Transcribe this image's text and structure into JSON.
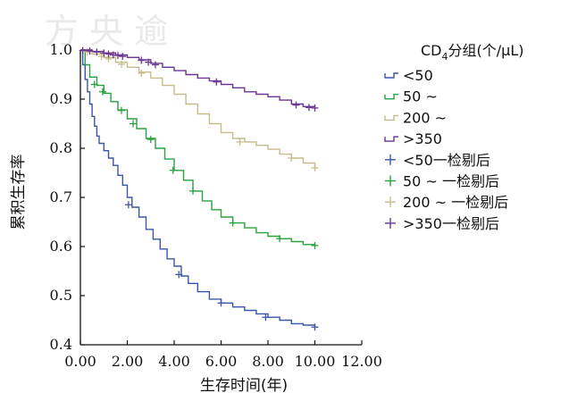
{
  "watermark": "方 央 逾",
  "chart_data": {
    "type": "line",
    "subtype": "kaplan-meier",
    "xlabel": "生存时间(年)",
    "ylabel": "累积生存率",
    "xlim": [
      0,
      12
    ],
    "ylim": [
      0.4,
      1.0
    ],
    "x_ticks": [
      "0.00",
      "2.00",
      "4.00",
      "6.00",
      "8.00",
      "10.00",
      "12.00"
    ],
    "y_ticks": [
      "0.4",
      "0.5",
      "0.6",
      "0.7",
      "0.8",
      "0.9",
      "1.0"
    ],
    "grid": false,
    "legend": {
      "placement": "right",
      "title_prefix": "CD",
      "title_sub": "4",
      "title_suffix": "分组(个/μL)",
      "entries": [
        "<50",
        "50 ~",
        "200 ~",
        ">350",
        "<50一检剔后",
        "50 ~ 一检剔后",
        "200 ~ 一检剔后",
        ">350一检剔后"
      ]
    },
    "series": [
      {
        "name": "<50",
        "color": "#3b56a6",
        "points": [
          [
            0,
            1.0
          ],
          [
            0.1,
            0.97
          ],
          [
            0.2,
            0.94
          ],
          [
            0.3,
            0.915
          ],
          [
            0.4,
            0.89
          ],
          [
            0.5,
            0.865
          ],
          [
            0.6,
            0.845
          ],
          [
            0.7,
            0.825
          ],
          [
            0.8,
            0.81
          ],
          [
            1.0,
            0.795
          ],
          [
            1.2,
            0.78
          ],
          [
            1.4,
            0.765
          ],
          [
            1.6,
            0.745
          ],
          [
            1.8,
            0.725
          ],
          [
            2.0,
            0.7
          ],
          [
            2.2,
            0.68
          ],
          [
            2.5,
            0.66
          ],
          [
            2.8,
            0.635
          ],
          [
            3.1,
            0.615
          ],
          [
            3.4,
            0.595
          ],
          [
            3.7,
            0.575
          ],
          [
            4.0,
            0.56
          ],
          [
            4.3,
            0.54
          ],
          [
            4.6,
            0.525
          ],
          [
            5.0,
            0.508
          ],
          [
            5.5,
            0.493
          ],
          [
            6.0,
            0.485
          ],
          [
            6.5,
            0.477
          ],
          [
            7.0,
            0.47
          ],
          [
            7.5,
            0.463
          ],
          [
            8.0,
            0.456
          ],
          [
            8.5,
            0.45
          ],
          [
            9.0,
            0.443
          ],
          [
            9.5,
            0.44
          ],
          [
            10.0,
            0.436
          ]
        ],
        "censored": [
          [
            2.05,
            0.685
          ],
          [
            4.2,
            0.543
          ],
          [
            6.0,
            0.485
          ],
          [
            7.9,
            0.456
          ],
          [
            10.0,
            0.436
          ]
        ]
      },
      {
        "name": "50 ~",
        "color": "#2aa13f",
        "points": [
          [
            0,
            1.0
          ],
          [
            0.2,
            0.97
          ],
          [
            0.4,
            0.945
          ],
          [
            0.7,
            0.928
          ],
          [
            1.0,
            0.912
          ],
          [
            1.3,
            0.895
          ],
          [
            1.6,
            0.878
          ],
          [
            2.0,
            0.86
          ],
          [
            2.4,
            0.84
          ],
          [
            2.8,
            0.82
          ],
          [
            3.2,
            0.8
          ],
          [
            3.6,
            0.778
          ],
          [
            4.0,
            0.755
          ],
          [
            4.4,
            0.735
          ],
          [
            4.8,
            0.713
          ],
          [
            5.2,
            0.693
          ],
          [
            5.6,
            0.675
          ],
          [
            6.0,
            0.66
          ],
          [
            6.5,
            0.648
          ],
          [
            7.0,
            0.638
          ],
          [
            7.5,
            0.628
          ],
          [
            8.0,
            0.621
          ],
          [
            8.5,
            0.616
          ],
          [
            9.0,
            0.61
          ],
          [
            9.5,
            0.604
          ],
          [
            10.0,
            0.602
          ]
        ],
        "censored": [
          [
            0.6,
            0.93
          ],
          [
            0.95,
            0.915
          ],
          [
            1.75,
            0.877
          ],
          [
            2.25,
            0.85
          ],
          [
            3.0,
            0.818
          ],
          [
            3.95,
            0.755
          ],
          [
            4.8,
            0.713
          ],
          [
            6.5,
            0.648
          ],
          [
            8.5,
            0.616
          ],
          [
            10.0,
            0.602
          ]
        ]
      },
      {
        "name": "200 ~",
        "color": "#c5bc8a",
        "points": [
          [
            0,
            1.0
          ],
          [
            0.5,
            0.992
          ],
          [
            1.0,
            0.985
          ],
          [
            1.5,
            0.975
          ],
          [
            2.0,
            0.965
          ],
          [
            2.5,
            0.955
          ],
          [
            3.0,
            0.943
          ],
          [
            3.5,
            0.928
          ],
          [
            4.0,
            0.91
          ],
          [
            4.5,
            0.89
          ],
          [
            5.0,
            0.87
          ],
          [
            5.5,
            0.85
          ],
          [
            6.0,
            0.832
          ],
          [
            6.5,
            0.82
          ],
          [
            7.0,
            0.813
          ],
          [
            7.5,
            0.806
          ],
          [
            8.0,
            0.798
          ],
          [
            8.5,
            0.788
          ],
          [
            9.0,
            0.78
          ],
          [
            9.5,
            0.77
          ],
          [
            10.0,
            0.76
          ]
        ],
        "censored": [
          [
            0.3,
            0.996
          ],
          [
            0.9,
            0.987
          ],
          [
            1.2,
            0.982
          ],
          [
            1.75,
            0.971
          ],
          [
            2.6,
            0.953
          ],
          [
            6.8,
            0.813
          ],
          [
            9.0,
            0.78
          ],
          [
            10.0,
            0.76
          ]
        ]
      },
      {
        "name": ">350",
        "color": "#6a3590",
        "points": [
          [
            0,
            1.0
          ],
          [
            0.5,
            0.997
          ],
          [
            1.0,
            0.994
          ],
          [
            1.5,
            0.99
          ],
          [
            2.0,
            0.985
          ],
          [
            2.5,
            0.98
          ],
          [
            3.0,
            0.973
          ],
          [
            3.5,
            0.965
          ],
          [
            4.0,
            0.958
          ],
          [
            4.5,
            0.95
          ],
          [
            5.0,
            0.943
          ],
          [
            5.5,
            0.937
          ],
          [
            6.0,
            0.93
          ],
          [
            6.5,
            0.923
          ],
          [
            7.0,
            0.915
          ],
          [
            7.5,
            0.91
          ],
          [
            8.0,
            0.905
          ],
          [
            8.5,
            0.898
          ],
          [
            9.0,
            0.89
          ],
          [
            9.5,
            0.885
          ],
          [
            10.0,
            0.882
          ]
        ],
        "censored": [
          [
            0.1,
            0.999
          ],
          [
            0.4,
            0.998
          ],
          [
            0.7,
            0.996
          ],
          [
            1.0,
            0.994
          ],
          [
            1.2,
            0.992
          ],
          [
            1.4,
            0.99
          ],
          [
            1.6,
            0.989
          ],
          [
            1.8,
            0.987
          ],
          [
            2.6,
            0.979
          ],
          [
            2.9,
            0.975
          ],
          [
            3.2,
            0.97
          ],
          [
            5.8,
            0.935
          ],
          [
            9.2,
            0.888
          ],
          [
            9.75,
            0.883
          ],
          [
            10.0,
            0.882
          ]
        ]
      }
    ]
  }
}
